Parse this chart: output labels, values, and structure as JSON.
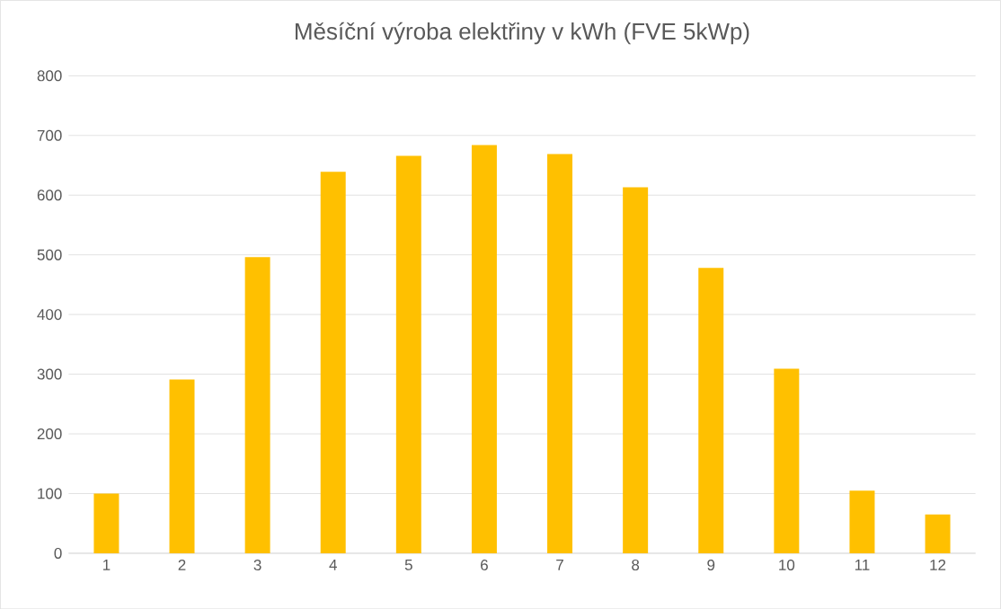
{
  "chart_data": {
    "type": "bar",
    "title": "Měsíční výroba elektřiny v kWh (FVE 5kWp)",
    "categories": [
      "1",
      "2",
      "3",
      "4",
      "5",
      "6",
      "7",
      "8",
      "9",
      "10",
      "11",
      "12"
    ],
    "values": [
      100,
      291,
      496,
      639,
      666,
      684,
      669,
      613,
      478,
      309,
      105,
      65
    ],
    "color": "#ffc000",
    "ylim": [
      0,
      800
    ],
    "yticks": [
      0,
      100,
      200,
      300,
      400,
      500,
      600,
      700,
      800
    ],
    "grid": "y"
  }
}
